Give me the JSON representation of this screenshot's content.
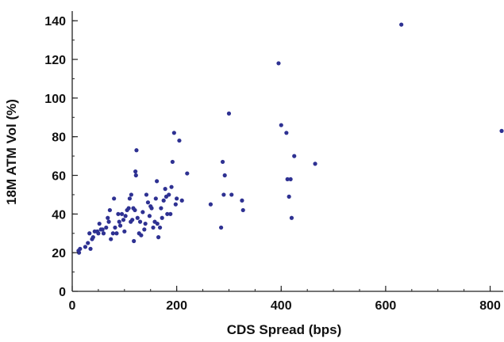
{
  "chart_data": {
    "type": "scatter",
    "title": "",
    "xlabel": "CDS Spread (bps)",
    "ylabel": "18M ATM Vol (%)",
    "xlim": [
      0,
      825
    ],
    "ylim": [
      0,
      145
    ],
    "x_ticks": [
      0,
      200,
      400,
      600,
      800
    ],
    "y_ticks": [
      0,
      20,
      40,
      60,
      80,
      100,
      120,
      140
    ],
    "x_minor_step": 50,
    "y_minor_step": 10,
    "grid": false,
    "marker_color": "#2e3192",
    "series": [
      {
        "points": [
          [
            12,
            21
          ],
          [
            13,
            20
          ],
          [
            15,
            22
          ],
          [
            25,
            23
          ],
          [
            30,
            25
          ],
          [
            33,
            30
          ],
          [
            35,
            22
          ],
          [
            38,
            27
          ],
          [
            40,
            28
          ],
          [
            43,
            31
          ],
          [
            48,
            31
          ],
          [
            50,
            30
          ],
          [
            52,
            35
          ],
          [
            55,
            32
          ],
          [
            58,
            32
          ],
          [
            60,
            30
          ],
          [
            65,
            33
          ],
          [
            68,
            38
          ],
          [
            70,
            36
          ],
          [
            72,
            42
          ],
          [
            74,
            27
          ],
          [
            78,
            30
          ],
          [
            80,
            48
          ],
          [
            82,
            33
          ],
          [
            85,
            30
          ],
          [
            88,
            40
          ],
          [
            90,
            36
          ],
          [
            92,
            34
          ],
          [
            95,
            40
          ],
          [
            98,
            37
          ],
          [
            100,
            31
          ],
          [
            102,
            39
          ],
          [
            105,
            42
          ],
          [
            108,
            43
          ],
          [
            110,
            48
          ],
          [
            112,
            36
          ],
          [
            113,
            50
          ],
          [
            115,
            37
          ],
          [
            117,
            43
          ],
          [
            118,
            26
          ],
          [
            120,
            42
          ],
          [
            121,
            62
          ],
          [
            122,
            60
          ],
          [
            123,
            73
          ],
          [
            125,
            38
          ],
          [
            128,
            30
          ],
          [
            130,
            36
          ],
          [
            132,
            29
          ],
          [
            135,
            41
          ],
          [
            138,
            32
          ],
          [
            140,
            35
          ],
          [
            142,
            50
          ],
          [
            145,
            46
          ],
          [
            148,
            39
          ],
          [
            150,
            44
          ],
          [
            152,
            43
          ],
          [
            155,
            33
          ],
          [
            158,
            36
          ],
          [
            160,
            48
          ],
          [
            162,
            57
          ],
          [
            163,
            35
          ],
          [
            165,
            28
          ],
          [
            168,
            33
          ],
          [
            170,
            43
          ],
          [
            172,
            38
          ],
          [
            175,
            47
          ],
          [
            178,
            53
          ],
          [
            180,
            49
          ],
          [
            182,
            40
          ],
          [
            185,
            50
          ],
          [
            188,
            40
          ],
          [
            190,
            54
          ],
          [
            192,
            67
          ],
          [
            195,
            82
          ],
          [
            198,
            45
          ],
          [
            200,
            48
          ],
          [
            205,
            78
          ],
          [
            210,
            47
          ],
          [
            220,
            61
          ],
          [
            265,
            45
          ],
          [
            285,
            33
          ],
          [
            288,
            67
          ],
          [
            290,
            50
          ],
          [
            292,
            60
          ],
          [
            300,
            92
          ],
          [
            305,
            50
          ],
          [
            325,
            47
          ],
          [
            327,
            42
          ],
          [
            395,
            118
          ],
          [
            400,
            86
          ],
          [
            410,
            82
          ],
          [
            412,
            58
          ],
          [
            415,
            49
          ],
          [
            418,
            58
          ],
          [
            420,
            38
          ],
          [
            425,
            70
          ],
          [
            465,
            66
          ],
          [
            630,
            138
          ],
          [
            822,
            83
          ]
        ]
      }
    ]
  }
}
